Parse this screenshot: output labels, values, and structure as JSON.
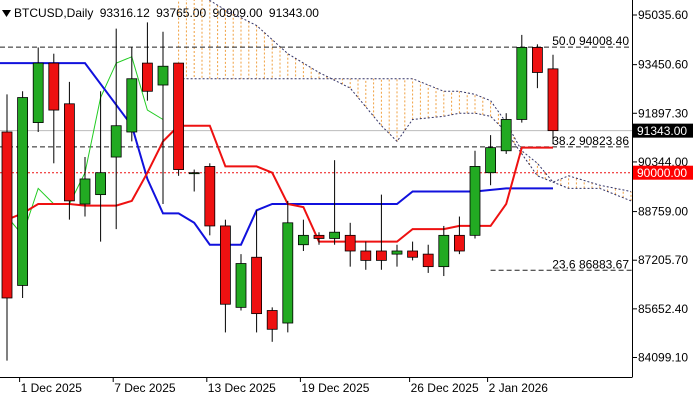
{
  "header": {
    "triangle_icon": "down-triangle-icon",
    "symbol": "BTCUSD,Daily",
    "open": "93316.12",
    "high": "93765.00",
    "low": "90909.00",
    "close": "91343.00"
  },
  "colors": {
    "bull": "#22aa22",
    "bear": "#ee1111",
    "tenkan": "#ee1111",
    "kijun": "#1111dd",
    "chikou": "#22cc22",
    "cloud_hatch": "#f0a040",
    "cloud_edge": "#333366",
    "fib_line": "#222222",
    "price_badge_bg": "#000000",
    "level_badge_bg": "#ff0000"
  },
  "chart_data": {
    "type": "candlestick",
    "symbol": "BTCUSD",
    "timeframe": "Daily",
    "ylim": [
      83000,
      96100
    ],
    "y_ticks": [
      "95035.60",
      "93450.60",
      "91897.30",
      "90344.00",
      "88759.00",
      "87205.70",
      "85652.40",
      "84099.10"
    ],
    "x_labels": [
      {
        "label": "1 Dec 2025",
        "index": 1
      },
      {
        "label": "7 Dec 2025",
        "index": 7
      },
      {
        "label": "13 Dec 2025",
        "index": 13
      },
      {
        "label": "19 Dec 2025",
        "index": 19
      },
      {
        "label": "26 Dec 2025",
        "index": 26
      },
      {
        "label": "2 Jan 2026",
        "index": 31
      }
    ],
    "candles": [
      {
        "i": 0,
        "o": 91300,
        "h": 92500,
        "l": 84000,
        "c": 86000
      },
      {
        "i": 1,
        "o": 86400,
        "h": 92600,
        "l": 86000,
        "c": 92400
      },
      {
        "i": 2,
        "o": 91600,
        "h": 94000,
        "l": 91300,
        "c": 93500
      },
      {
        "i": 3,
        "o": 93500,
        "h": 93800,
        "l": 90300,
        "c": 92000
      },
      {
        "i": 4,
        "o": 92200,
        "h": 92900,
        "l": 88500,
        "c": 89100
      },
      {
        "i": 5,
        "o": 89000,
        "h": 90500,
        "l": 88600,
        "c": 89800
      },
      {
        "i": 6,
        "o": 89300,
        "h": 92600,
        "l": 87800,
        "c": 90000
      },
      {
        "i": 7,
        "o": 90500,
        "h": 94600,
        "l": 88200,
        "c": 91500
      },
      {
        "i": 8,
        "o": 91300,
        "h": 94000,
        "l": 91000,
        "c": 93000
      },
      {
        "i": 9,
        "o": 93500,
        "h": 94800,
        "l": 92300,
        "c": 92600
      },
      {
        "i": 10,
        "o": 92800,
        "h": 94500,
        "l": 89000,
        "c": 93400
      },
      {
        "i": 11,
        "o": 93500,
        "h": 93500,
        "l": 89900,
        "c": 90100
      },
      {
        "i": 12,
        "o": 90000,
        "h": 90100,
        "l": 89400,
        "c": 90000
      },
      {
        "i": 13,
        "o": 90200,
        "h": 90300,
        "l": 88000,
        "c": 88300
      },
      {
        "i": 14,
        "o": 88300,
        "h": 88500,
        "l": 84900,
        "c": 85800
      },
      {
        "i": 15,
        "o": 85700,
        "h": 87400,
        "l": 85600,
        "c": 87100
      },
      {
        "i": 16,
        "o": 87300,
        "h": 88800,
        "l": 84900,
        "c": 85500
      },
      {
        "i": 17,
        "o": 85600,
        "h": 85700,
        "l": 84600,
        "c": 85000
      },
      {
        "i": 18,
        "o": 85200,
        "h": 89100,
        "l": 84900,
        "c": 88400
      },
      {
        "i": 19,
        "o": 87700,
        "h": 88500,
        "l": 87500,
        "c": 88000
      },
      {
        "i": 20,
        "o": 88000,
        "h": 88100,
        "l": 87700,
        "c": 87900
      },
      {
        "i": 21,
        "o": 87900,
        "h": 90400,
        "l": 87700,
        "c": 88100
      },
      {
        "i": 22,
        "o": 88000,
        "h": 88400,
        "l": 87000,
        "c": 87500
      },
      {
        "i": 23,
        "o": 87500,
        "h": 87800,
        "l": 86900,
        "c": 87200
      },
      {
        "i": 24,
        "o": 87500,
        "h": 89300,
        "l": 86900,
        "c": 87200
      },
      {
        "i": 25,
        "o": 87400,
        "h": 87700,
        "l": 87000,
        "c": 87500
      },
      {
        "i": 26,
        "o": 87500,
        "h": 87800,
        "l": 87200,
        "c": 87300
      },
      {
        "i": 27,
        "o": 87400,
        "h": 87700,
        "l": 86800,
        "c": 87000
      },
      {
        "i": 28,
        "o": 87000,
        "h": 88300,
        "l": 86700,
        "c": 88000
      },
      {
        "i": 29,
        "o": 88000,
        "h": 88600,
        "l": 87400,
        "c": 87500
      },
      {
        "i": 30,
        "o": 88000,
        "h": 90700,
        "l": 87900,
        "c": 90200
      },
      {
        "i": 31,
        "o": 90000,
        "h": 91200,
        "l": 89600,
        "c": 90800
      },
      {
        "i": 32,
        "o": 90700,
        "h": 91900,
        "l": 90600,
        "c": 91700
      },
      {
        "i": 33,
        "o": 91700,
        "h": 94400,
        "l": 91600,
        "c": 94000
      },
      {
        "i": 34,
        "o": 94000,
        "h": 94100,
        "l": 92700,
        "c": 93200
      },
      {
        "i": 35,
        "o": 93316.12,
        "h": 93765.0,
        "l": 90909.0,
        "c": 91343.0
      }
    ],
    "tenkan_sen": {
      "name": "",
      "points": [
        [
          0,
          88500
        ],
        [
          1,
          88700
        ],
        [
          2,
          89000
        ],
        [
          3,
          89000
        ],
        [
          4,
          89000
        ],
        [
          5,
          88950
        ],
        [
          6,
          88950
        ],
        [
          7,
          88950
        ],
        [
          8,
          89100
        ],
        [
          9,
          90000
        ],
        [
          10,
          91000
        ],
        [
          11,
          91500
        ],
        [
          12,
          91500
        ],
        [
          13,
          91500
        ],
        [
          14,
          90200
        ],
        [
          15,
          90200
        ],
        [
          16,
          90200
        ],
        [
          17,
          90000
        ],
        [
          18,
          89000
        ],
        [
          19,
          88900
        ],
        [
          20,
          87800
        ],
        [
          21,
          87800
        ],
        [
          22,
          87800
        ],
        [
          23,
          87800
        ],
        [
          24,
          87800
        ],
        [
          25,
          87800
        ],
        [
          26,
          88200
        ],
        [
          27,
          88200
        ],
        [
          28,
          88200
        ],
        [
          29,
          88300
        ],
        [
          30,
          88300
        ],
        [
          31,
          88300
        ],
        [
          32,
          89000
        ],
        [
          33,
          90800
        ],
        [
          34,
          90800
        ],
        [
          35,
          90800
        ]
      ]
    },
    "kijun_sen": {
      "name": "",
      "points": [
        [
          -1,
          93500
        ],
        [
          5,
          93500
        ],
        [
          8,
          91500
        ],
        [
          9,
          89800
        ],
        [
          10,
          88700
        ],
        [
          11,
          88700
        ],
        [
          12,
          88400
        ],
        [
          13,
          87700
        ],
        [
          14,
          87700
        ],
        [
          15,
          87700
        ],
        [
          16,
          88800
        ],
        [
          17,
          89000
        ],
        [
          18,
          89000
        ],
        [
          25,
          89000
        ],
        [
          26,
          89400
        ],
        [
          30,
          89400
        ],
        [
          32,
          89500
        ],
        [
          35,
          89500
        ]
      ]
    },
    "chikou_span": {
      "name": "",
      "points": [
        [
          0,
          88600
        ],
        [
          1,
          88000
        ],
        [
          2,
          89500
        ],
        [
          3,
          89000
        ],
        [
          4,
          89000
        ],
        [
          5,
          90000
        ],
        [
          6,
          92400
        ],
        [
          7,
          93500
        ],
        [
          8,
          93700
        ],
        [
          9,
          92000
        ],
        [
          10,
          91700
        ]
      ]
    },
    "cloud": {
      "upper": [
        [
          11,
          96100
        ],
        [
          12,
          95800
        ],
        [
          14,
          95200
        ],
        [
          16,
          94700
        ],
        [
          18,
          93800
        ],
        [
          20,
          93200
        ],
        [
          22,
          92700
        ],
        [
          24,
          91500
        ],
        [
          25,
          91000
        ],
        [
          26,
          91700
        ],
        [
          28,
          91800
        ],
        [
          29,
          91900
        ],
        [
          30,
          91900
        ],
        [
          31,
          91800
        ],
        [
          32,
          91300
        ],
        [
          33,
          90600
        ],
        [
          34,
          89900
        ],
        [
          35,
          89700
        ],
        [
          36,
          89500
        ],
        [
          38,
          89500
        ],
        [
          40,
          89100
        ]
      ],
      "lower": [
        [
          11,
          93000
        ],
        [
          12,
          93000
        ],
        [
          14,
          93000
        ],
        [
          16,
          93000
        ],
        [
          18,
          93000
        ],
        [
          20,
          93000
        ],
        [
          22,
          93000
        ],
        [
          24,
          93000
        ],
        [
          25,
          93000
        ],
        [
          26,
          93000
        ],
        [
          28,
          92600
        ],
        [
          29,
          92600
        ],
        [
          30,
          92500
        ],
        [
          31,
          92300
        ],
        [
          32,
          91600
        ],
        [
          33,
          90700
        ],
        [
          34,
          90300
        ],
        [
          35,
          89700
        ],
        [
          36,
          89900
        ],
        [
          38,
          89600
        ],
        [
          40,
          89400
        ]
      ]
    },
    "levels": [
      {
        "label": "50.0 94008.40",
        "value": 94008.4,
        "style": "dashed"
      },
      {
        "label": "38.2 90823.86",
        "value": 90823.86,
        "style": "dashed"
      },
      {
        "label": "23.6 86883.67",
        "value": 86883.67,
        "style": "dashed"
      }
    ],
    "horizontal_lines": [
      {
        "label": "90000.00",
        "value": 90000,
        "style": "dotted-red",
        "badge": true
      },
      {
        "label": "91343.00",
        "value": 91343,
        "style": "solid-grey",
        "badge": true
      }
    ]
  }
}
